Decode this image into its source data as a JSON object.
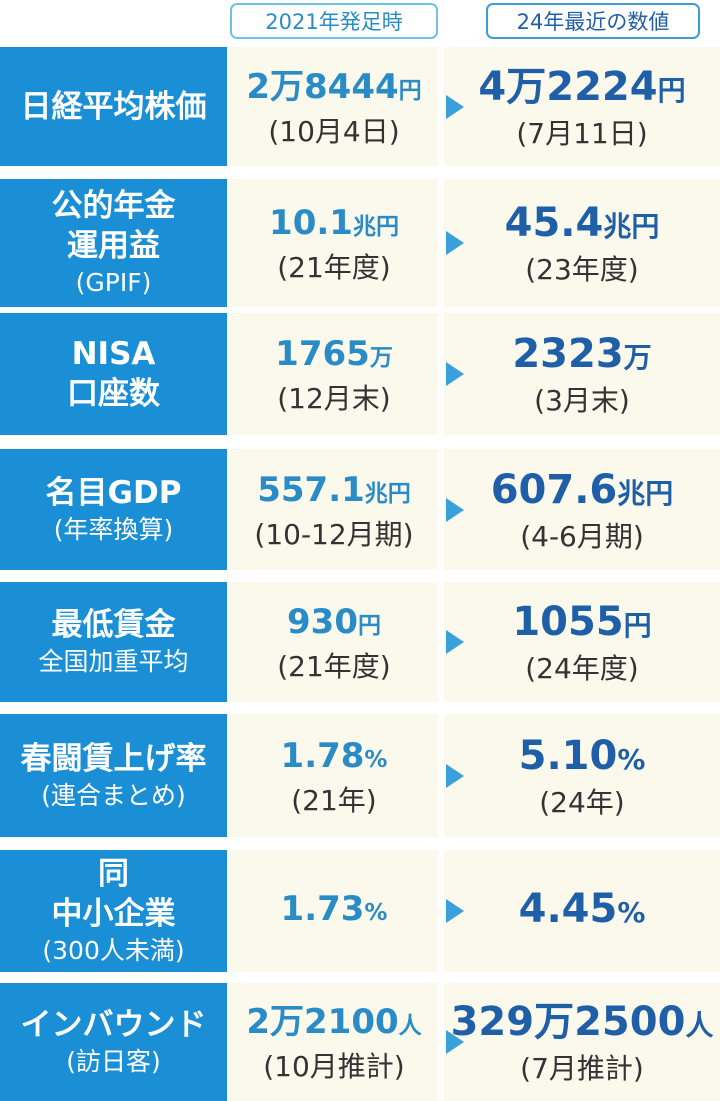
{
  "header": {
    "col_2021": "2021年発足時",
    "col_2024": "24年最近の数値"
  },
  "rows": [
    {
      "label": [
        "日経平均株価"
      ],
      "sublabel": "",
      "v2021": "2万8444",
      "u2021": "円",
      "s2021": "(10月4日)",
      "v2024": "4万2224",
      "u2024": "円",
      "s2024": "(7月11日)"
    },
    {
      "label": [
        "公的年金",
        "運用益"
      ],
      "sublabel": "(GPIF)",
      "v2021": "10.1",
      "u2021": "兆円",
      "s2021": "(21年度)",
      "v2024": "45.4",
      "u2024": "兆円",
      "s2024": "(23年度)"
    },
    {
      "label": [
        "NISA",
        "口座数"
      ],
      "sublabel": "",
      "v2021": "1765",
      "u2021": "万",
      "s2021": "(12月末)",
      "v2024": "2323",
      "u2024": "万",
      "s2024": "(3月末)"
    },
    {
      "label": [
        "名目GDP"
      ],
      "sublabel": "(年率換算)",
      "v2021": "557.1",
      "u2021": "兆円",
      "s2021": "(10-12月期)",
      "v2024": "607.6",
      "u2024": "兆円",
      "s2024": "(4-6月期)"
    },
    {
      "label": [
        "最低賃金"
      ],
      "sublabel": "全国加重平均",
      "v2021": "930",
      "u2021": "円",
      "s2021": "(21年度)",
      "v2024": "1055",
      "u2024": "円",
      "s2024": "(24年度)"
    },
    {
      "label": [
        "春闘賃上げ率"
      ],
      "sublabel": "(連合まとめ)",
      "v2021": "1.78",
      "u2021": "%",
      "s2021": "(21年)",
      "v2024": "5.10",
      "u2024": "%",
      "s2024": "(24年)"
    },
    {
      "label": [
        "同",
        "中小企業"
      ],
      "sublabel": "(300人未満)",
      "v2021": "1.73",
      "u2021": "%",
      "s2021": "",
      "v2024": "4.45",
      "u2024": "%",
      "s2024": ""
    },
    {
      "label": [
        "インバウンド"
      ],
      "sublabel": "(訪日客)",
      "v2021": "2万2100",
      "u2021": "人",
      "s2021": "(10月推計)",
      "v2024": "329万2500",
      "u2024": "人",
      "s2024": "(7月推計)"
    }
  ],
  "colors": {
    "label_bg": "#1a8fd6",
    "value_bg": "#fbf8ec",
    "value_2021": "#2a8cc7",
    "value_2024": "#1f5fa8"
  }
}
